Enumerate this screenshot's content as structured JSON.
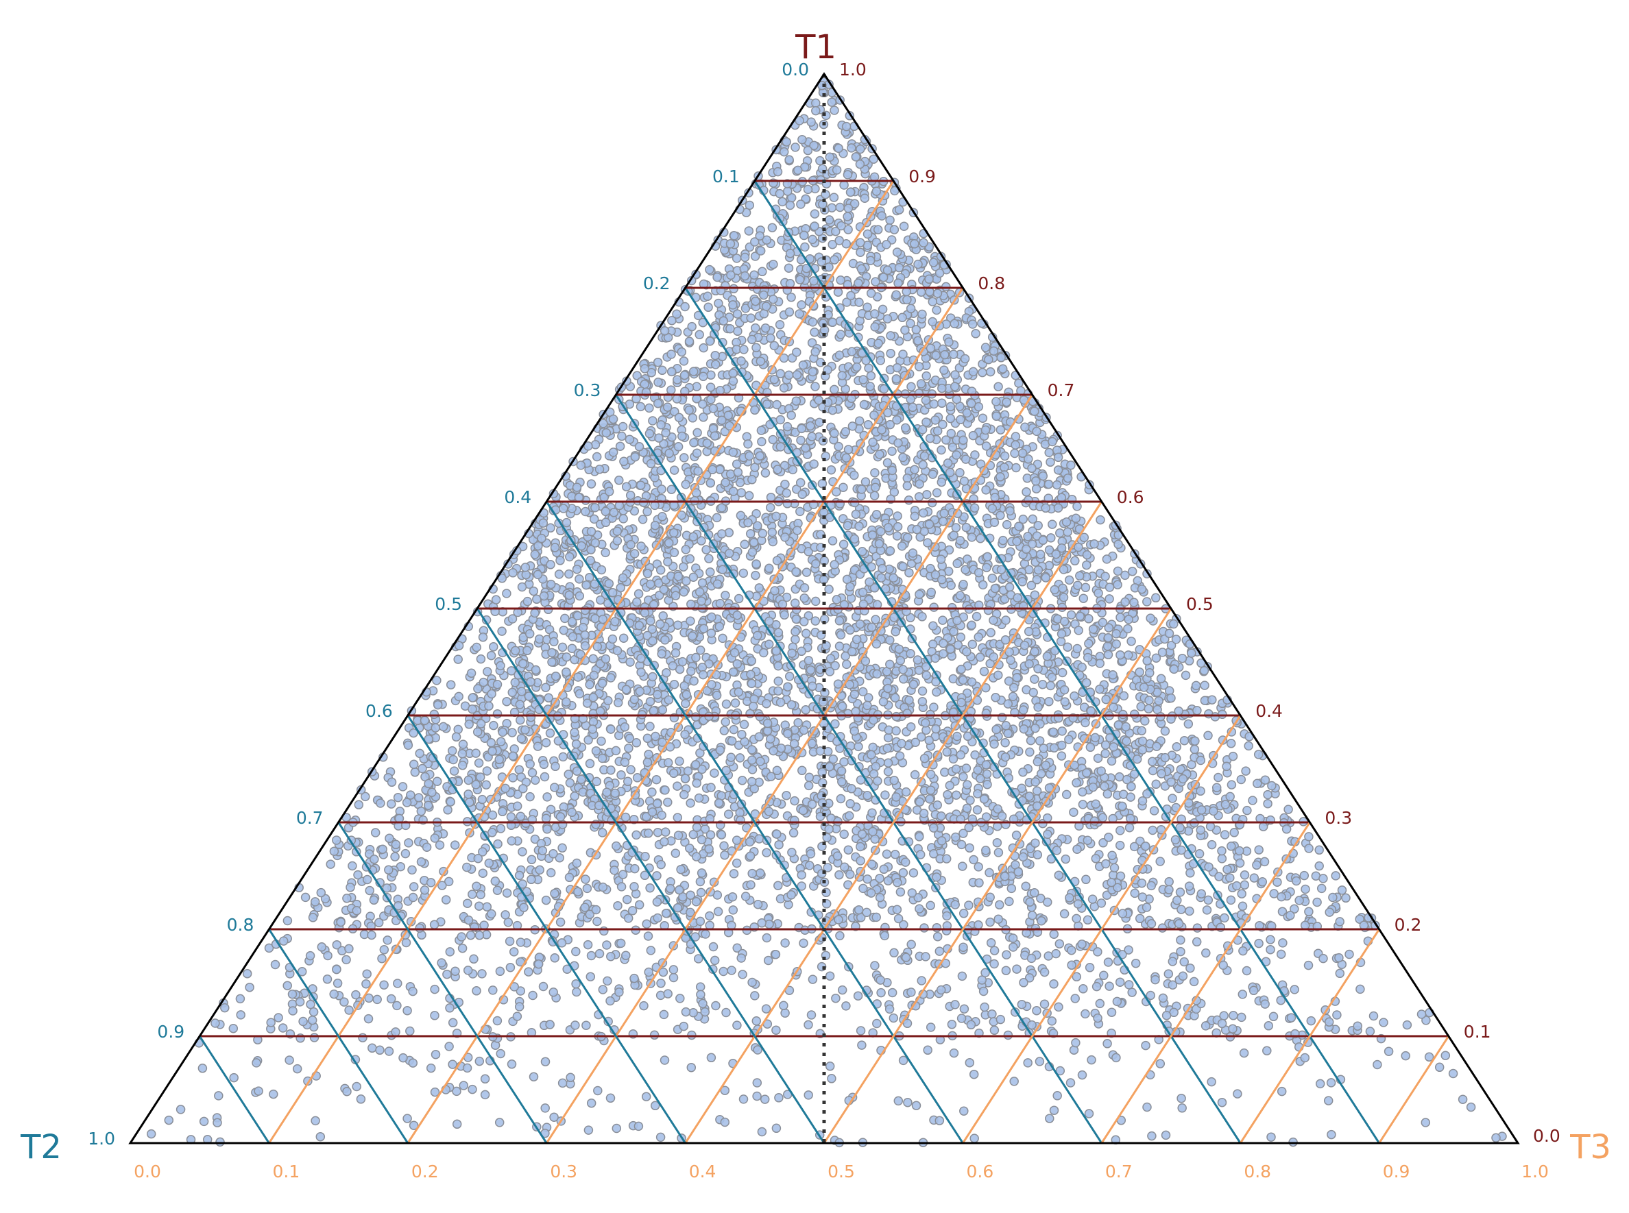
{
  "chart_data": {
    "type": "scatter",
    "subtype": "ternary",
    "axes": {
      "top": {
        "label": "T1",
        "color": "#7a1a1a"
      },
      "left": {
        "label": "T2",
        "color": "#1f7a99"
      },
      "right": {
        "label": "T3",
        "color": "#f4a261"
      }
    },
    "ticks": {
      "t1": [
        "0.1",
        "0.2",
        "0.3",
        "0.4",
        "0.5",
        "0.6",
        "0.7",
        "0.8",
        "0.9",
        "1.0"
      ],
      "t1_zero": "0.0",
      "t2": [
        "0.0",
        "0.1",
        "0.2",
        "0.3",
        "0.4",
        "0.5",
        "0.6",
        "0.7",
        "0.8",
        "0.9",
        "1.0"
      ],
      "t3": [
        "0.0",
        "0.1",
        "0.2",
        "0.3",
        "0.4",
        "0.5",
        "0.6",
        "0.7",
        "0.8",
        "0.9",
        "1.0"
      ]
    },
    "grid": true,
    "centerline": {
      "style": "dotted",
      "at_t3": 0.5
    },
    "marker": {
      "fill": "#a9c1e8",
      "edge": "#8a8f99"
    },
    "density_profile": {
      "t1_ranges": [
        [
          0.0,
          0.1
        ],
        [
          0.1,
          0.2
        ],
        [
          0.2,
          0.3
        ],
        [
          0.3,
          0.4
        ],
        [
          0.4,
          0.5
        ],
        [
          0.5,
          0.6
        ],
        [
          0.6,
          0.7
        ],
        [
          0.7,
          0.8
        ],
        [
          0.8,
          0.9
        ],
        [
          0.9,
          1.0
        ]
      ],
      "relative_density": [
        0.12,
        0.32,
        0.62,
        0.9,
        1.0,
        0.98,
        0.95,
        0.9,
        0.88,
        0.85
      ]
    }
  }
}
